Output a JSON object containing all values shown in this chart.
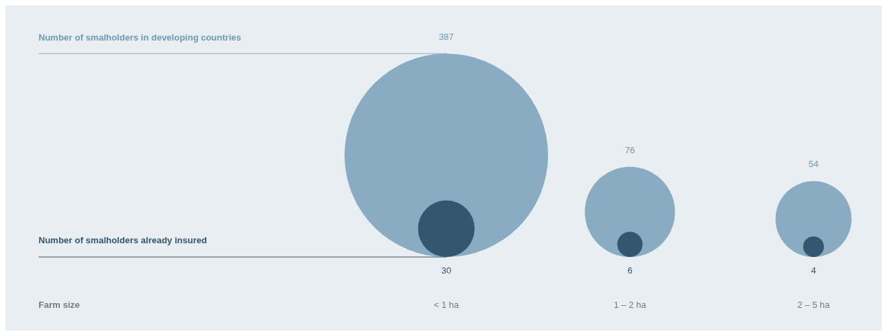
{
  "chart_data": {
    "type": "other",
    "xlabel": "Farm size",
    "categories": [
      "< 1 ha",
      "1 – 2 ha",
      "2 – 5 ha"
    ],
    "legend": false,
    "data_labels": true,
    "series": [
      {
        "name": "Number of smalholders in developing countries",
        "color": "#8aacc2",
        "values": [
          387,
          76,
          54
        ]
      },
      {
        "name": "Number of smalholders already insured",
        "color": "#35566f",
        "values": [
          30,
          6,
          4
        ]
      }
    ]
  }
}
